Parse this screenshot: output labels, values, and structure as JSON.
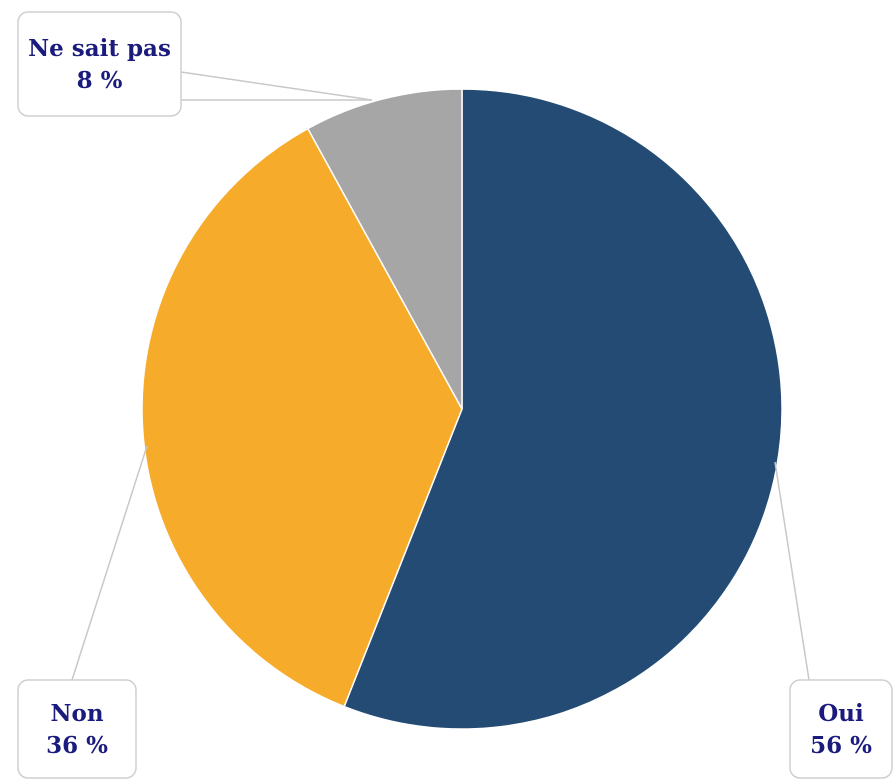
{
  "chart_data": {
    "type": "pie",
    "title": "",
    "slices": [
      {
        "label": "Oui",
        "value": 56,
        "value_label": "56 %",
        "color": "#234B74"
      },
      {
        "label": "Non",
        "value": 36,
        "value_label": "36 %",
        "color": "#F7AB2B"
      },
      {
        "label": "Ne sait pas",
        "value": 8,
        "value_label": "8 %",
        "color": "#A6A6A6"
      }
    ],
    "start_angle": "12 o'clock",
    "direction": "clockwise",
    "label_color": "#1B1B7E",
    "legend": "none"
  }
}
